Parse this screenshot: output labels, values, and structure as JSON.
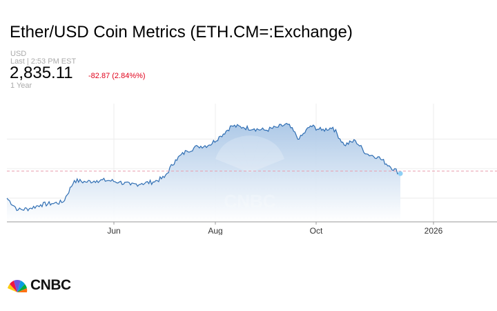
{
  "header": {
    "title": "Ether/USD Coin Metrics (ETH.CM=:Exchange)",
    "currency": "USD",
    "last_update": "Last | 2:53 PM EST",
    "price": "2,835.11",
    "change": "-82.87 (2.84%%)",
    "range": "1 Year"
  },
  "brand": {
    "logo_text": "CNBC",
    "watermark_text": "CNBC"
  },
  "colors": {
    "line": "#2f6eb3",
    "fill_top": "#a9c6e6",
    "fill_bottom": "#ffffff",
    "change_negative": "#e0001a",
    "last_marker": "#8fd0f5"
  },
  "chart_data": {
    "type": "area",
    "x_ticks": [
      "Jun",
      "Aug",
      "Oct",
      "2026"
    ],
    "x": [
      "Mar 26",
      "Apr 2",
      "Apr 9",
      "Apr 16",
      "Apr 23",
      "Apr 30",
      "May 7",
      "May 14",
      "May 21",
      "May 28",
      "Jun 4",
      "Jun 11",
      "Jun 18",
      "Jun 25",
      "Jul 2",
      "Jul 9",
      "Jul 16",
      "Jul 23",
      "Jul 30",
      "Aug 6",
      "Aug 13",
      "Aug 20",
      "Aug 27",
      "Sep 3",
      "Sep 10",
      "Sep 17",
      "Sep 24",
      "Oct 1",
      "Oct 8",
      "Oct 15",
      "Oct 22",
      "Oct 29",
      "Nov 5",
      "Nov 12",
      "Nov 19",
      "Nov 26"
    ],
    "values": [
      2000,
      1600,
      1650,
      1780,
      1820,
      1870,
      2600,
      2550,
      2600,
      2600,
      2550,
      2450,
      2500,
      2550,
      2700,
      3300,
      3600,
      3750,
      3800,
      4100,
      4450,
      4400,
      4350,
      4300,
      4400,
      4500,
      4000,
      4450,
      4300,
      4400,
      3800,
      3950,
      3500,
      3400,
      3100,
      2835
    ],
    "ylim": [
      1200,
      5200
    ],
    "y_grid": [
      2000,
      3000,
      4000
    ],
    "previous_close": 2918,
    "last_value": 2835.11,
    "grid": true
  }
}
